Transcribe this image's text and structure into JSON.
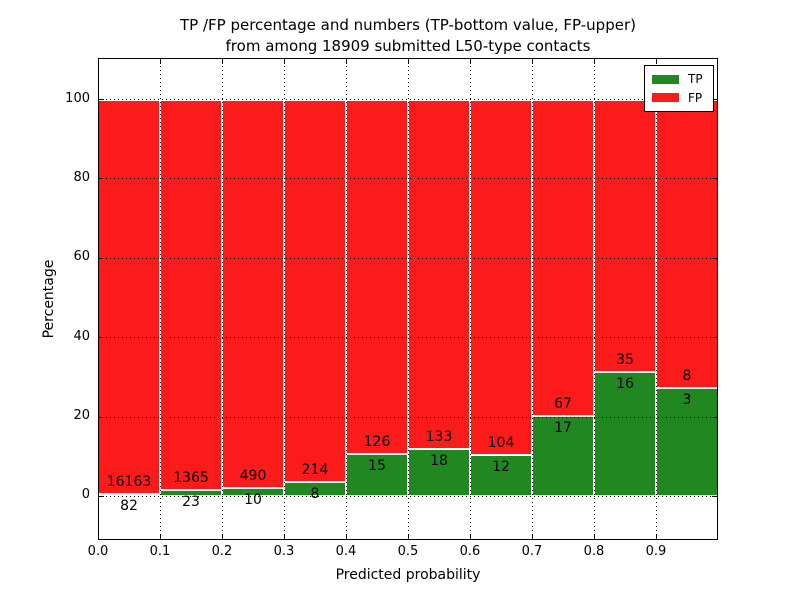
{
  "title": {
    "line1": "TP /FP percentage and numbers (TP-bottom value, FP-upper)",
    "line2": "from among 18909 submitted L50-type contacts"
  },
  "axes": {
    "xlabel": "Predicted probability",
    "ylabel": "Percentage",
    "x_ticks": [
      "0.0",
      "0.1",
      "0.2",
      "0.3",
      "0.4",
      "0.5",
      "0.6",
      "0.7",
      "0.8",
      "0.9"
    ],
    "y_ticks": [
      "0",
      "20",
      "40",
      "60",
      "80",
      "100"
    ]
  },
  "legend": {
    "items": [
      {
        "label": "TP",
        "color": "#208721"
      },
      {
        "label": "FP",
        "color": "#fb1b1b"
      }
    ],
    "position": "upper right"
  },
  "chart_data": {
    "type": "bar",
    "stacked": true,
    "title": "TP /FP percentage and numbers (TP-bottom value, FP-upper) from among 18909 submitted L50-type contacts",
    "xlabel": "Predicted probability",
    "ylabel": "Percentage",
    "total_contacts": 18909,
    "categories": [
      "0.0-0.1",
      "0.1-0.2",
      "0.2-0.3",
      "0.3-0.4",
      "0.4-0.5",
      "0.5-0.6",
      "0.6-0.7",
      "0.7-0.8",
      "0.8-0.9",
      "0.9-1.0"
    ],
    "series": [
      {
        "name": "TP",
        "color": "#208721",
        "counts": [
          82,
          23,
          10,
          8,
          15,
          18,
          12,
          17,
          16,
          3
        ],
        "percent": [
          0.5,
          1.66,
          2.0,
          3.6,
          10.64,
          11.92,
          10.34,
          20.24,
          31.37,
          27.27
        ]
      },
      {
        "name": "FP",
        "color": "#fb1b1b",
        "counts": [
          16163,
          1365,
          490,
          214,
          126,
          133,
          104,
          67,
          35,
          8
        ],
        "percent": [
          99.5,
          98.34,
          98.0,
          96.4,
          89.36,
          88.08,
          89.66,
          79.76,
          68.63,
          72.73
        ]
      }
    ],
    "xlim": [
      0,
      1.0
    ],
    "ylim": [
      -11,
      110.5
    ],
    "grid": true,
    "grid_style": "dotted-black-over-bars",
    "bar_edge_color": "#ffffff",
    "legend_position": "upper right"
  }
}
